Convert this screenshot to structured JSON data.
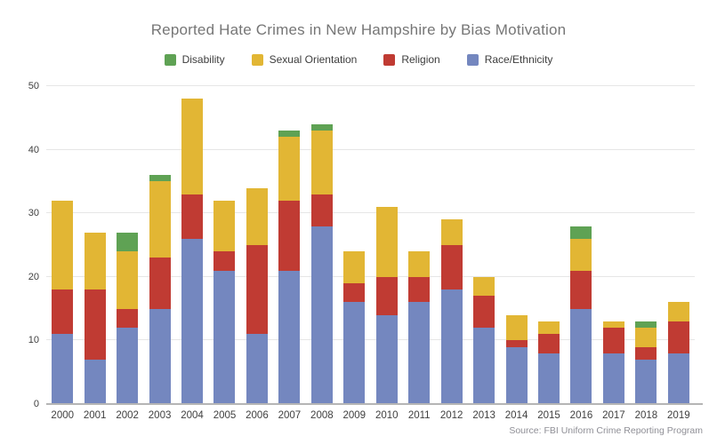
{
  "title": "Reported Hate Crimes in New Hampshire by Bias Motivation",
  "source": "Source: FBI Uniform Crime Reporting Program",
  "colors": {
    "background": "#ffffff",
    "title_text": "#767676",
    "axis_text": "#3f3f3f",
    "gridline": "#e6e6e6",
    "axis_line": "#b5b5b5",
    "source_text": "#8f8f96"
  },
  "chart_data": {
    "type": "bar",
    "stacked": true,
    "title": "Reported Hate Crimes in New Hampshire by Bias Motivation",
    "xlabel": "",
    "ylabel": "",
    "ylim": [
      0,
      50
    ],
    "yticks": [
      0,
      10,
      20,
      30,
      40,
      50
    ],
    "grid": "horizontal",
    "legend_position": "top",
    "legend_order": [
      "Disability",
      "Sexual Orientation",
      "Religion",
      "Race/Ethnicity"
    ],
    "categories": [
      "2000",
      "2001",
      "2002",
      "2003",
      "2004",
      "2005",
      "2006",
      "2007",
      "2008",
      "2009",
      "2010",
      "2011",
      "2012",
      "2013",
      "2014",
      "2015",
      "2016",
      "2017",
      "2018",
      "2019"
    ],
    "series": [
      {
        "name": "Race/Ethnicity",
        "color": "#7487bf",
        "values": [
          11,
          7,
          12,
          15,
          26,
          21,
          11,
          21,
          28,
          16,
          14,
          16,
          18,
          12,
          9,
          8,
          15,
          8,
          7,
          8
        ]
      },
      {
        "name": "Religion",
        "color": "#c03b33",
        "values": [
          7,
          11,
          3,
          8,
          7,
          3,
          14,
          11,
          5,
          3,
          6,
          4,
          7,
          5,
          1,
          3,
          6,
          4,
          2,
          5
        ]
      },
      {
        "name": "Sexual Orientation",
        "color": "#e2b634",
        "values": [
          14,
          9,
          9,
          12,
          15,
          8,
          9,
          10,
          10,
          5,
          11,
          4,
          4,
          3,
          4,
          2,
          5,
          1,
          3,
          3
        ]
      },
      {
        "name": "Disability",
        "color": "#5fa254",
        "values": [
          0,
          0,
          3,
          1,
          0,
          0,
          0,
          1,
          1,
          0,
          0,
          0,
          0,
          0,
          0,
          0,
          2,
          0,
          1,
          0
        ]
      }
    ],
    "totals": [
      32,
      27,
      27,
      36,
      48,
      32,
      34,
      43,
      44,
      24,
      31,
      24,
      29,
      20,
      14,
      13,
      28,
      13,
      13,
      16
    ]
  }
}
